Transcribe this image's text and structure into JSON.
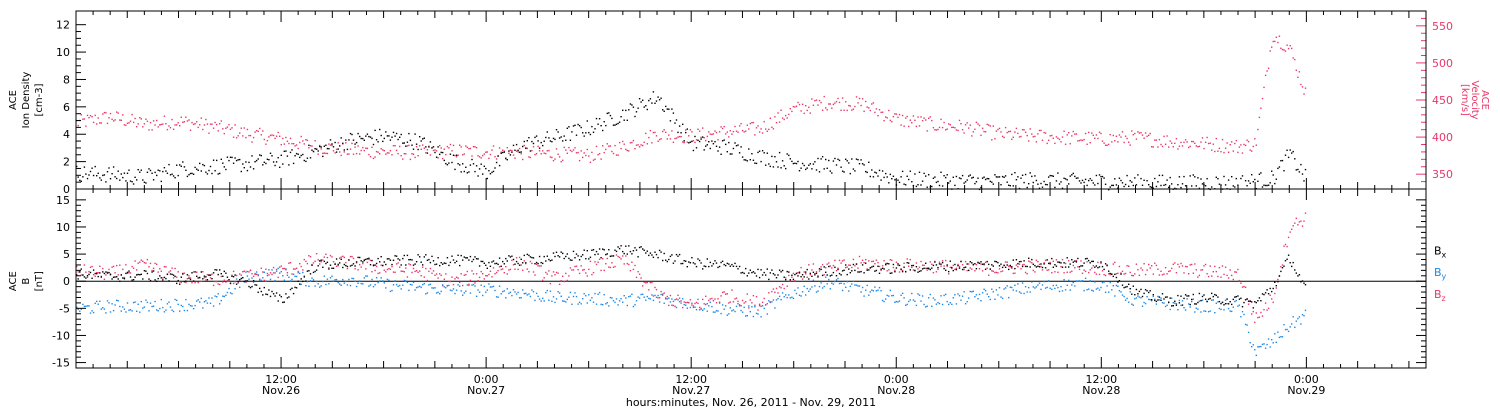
{
  "chart_data": [
    {
      "type": "scatter",
      "instrument": "ACE",
      "ylabel_left": [
        "ACE",
        "Ion Density",
        "[cm-3]"
      ],
      "ylabel_right": [
        "ACE",
        "Velocity",
        "[km/s]"
      ],
      "ylim_left": [
        0,
        13
      ],
      "ylim_right": [
        330,
        570
      ],
      "yticks_left": [
        "0",
        "2",
        "4",
        "6",
        "8",
        "10",
        "12"
      ],
      "yticks_right": [
        "350",
        "400",
        "450",
        "500",
        "550"
      ],
      "grid": false,
      "series": [
        {
          "name": "Ion Density",
          "axis": "left",
          "color": "#000000",
          "x_hours": [
            0,
            2,
            4,
            6,
            8,
            10,
            12,
            14,
            16,
            18,
            20,
            22,
            24,
            26,
            28,
            30,
            32,
            34,
            36,
            38,
            40,
            42,
            44,
            46,
            48,
            50,
            52,
            54,
            56,
            58,
            60,
            62,
            64,
            66,
            68,
            70,
            71,
            72
          ],
          "y": [
            1.2,
            1.1,
            0.9,
            1.5,
            1.7,
            1.9,
            2.2,
            2.8,
            3.6,
            3.9,
            3.5,
            2.1,
            1.3,
            3.2,
            3.8,
            4.5,
            5.5,
            6.8,
            3.4,
            3.1,
            2.4,
            2.0,
            1.8,
            1.6,
            0.8,
            0.7,
            0.6,
            0.6,
            0.7,
            0.6,
            0.6,
            0.5,
            0.5,
            0.5,
            0.5,
            0.8,
            2.6,
            0.7
          ]
        },
        {
          "name": "Velocity",
          "axis": "right",
          "color": "#e8386a",
          "x_hours": [
            0,
            2,
            4,
            6,
            8,
            10,
            12,
            14,
            16,
            18,
            20,
            22,
            24,
            26,
            28,
            30,
            32,
            34,
            36,
            38,
            40,
            42,
            44,
            46,
            48,
            50,
            52,
            54,
            56,
            58,
            60,
            62,
            64,
            66,
            68,
            69,
            70,
            71,
            72
          ],
          "y": [
            420,
            428,
            418,
            422,
            415,
            405,
            398,
            388,
            383,
            381,
            380,
            382,
            381,
            380,
            378,
            376,
            388,
            405,
            402,
            408,
            412,
            438,
            448,
            445,
            425,
            418,
            414,
            405,
            402,
            400,
            398,
            400,
            395,
            392,
            388,
            392,
            540,
            520,
            455
          ]
        }
      ]
    },
    {
      "type": "scatter",
      "instrument": "ACE",
      "ylabel_left": [
        "ACE",
        "B",
        "[nT]"
      ],
      "ylim": [
        -16,
        17
      ],
      "yticks": [
        "-15",
        "-10",
        "-5",
        "0",
        "5",
        "10",
        "15"
      ],
      "grid": false,
      "zero_line": true,
      "legend": [
        "Bx",
        "By",
        "Bz"
      ],
      "legend_placement": "right",
      "series": [
        {
          "name": "Bx",
          "color": "#000000",
          "x_hours": [
            0,
            2,
            4,
            6,
            8,
            10,
            12,
            14,
            16,
            18,
            20,
            22,
            24,
            26,
            28,
            30,
            32,
            34,
            36,
            38,
            40,
            42,
            44,
            46,
            48,
            50,
            52,
            54,
            56,
            58,
            60,
            62,
            64,
            66,
            68,
            69,
            70,
            71,
            72
          ],
          "y": [
            1.5,
            1.0,
            1.2,
            0.5,
            1.5,
            0.0,
            -3.5,
            3.0,
            3.5,
            3.8,
            4.0,
            4.0,
            3.5,
            4.0,
            4.5,
            5.0,
            6.0,
            5.0,
            3.5,
            3.0,
            1.5,
            1.0,
            2.0,
            2.5,
            2.5,
            2.8,
            3.0,
            3.2,
            3.5,
            3.5,
            3.5,
            -2.0,
            -3.5,
            -3.0,
            -3.5,
            -4.0,
            -1.0,
            4.5,
            -2.0
          ]
        },
        {
          "name": "By",
          "color": "#1e88e5",
          "x_hours": [
            0,
            2,
            4,
            6,
            8,
            10,
            12,
            14,
            16,
            18,
            20,
            22,
            24,
            26,
            28,
            30,
            32,
            34,
            36,
            38,
            40,
            42,
            44,
            46,
            48,
            50,
            52,
            54,
            56,
            58,
            60,
            62,
            64,
            66,
            68,
            69,
            70,
            71,
            72
          ],
          "y": [
            -5.0,
            -4.5,
            -4.5,
            -4.2,
            -4.0,
            1.0,
            1.5,
            0.0,
            0.5,
            -0.5,
            -1.0,
            -1.5,
            -1.5,
            -2.0,
            -3.0,
            -3.0,
            -3.5,
            -3.0,
            -4.0,
            -5.0,
            -5.5,
            -2.0,
            0.0,
            -1.5,
            -3.0,
            -3.5,
            -3.0,
            -2.0,
            -1.0,
            -0.5,
            -0.5,
            -3.5,
            -4.0,
            -4.5,
            -4.5,
            -13.0,
            -11.0,
            -8.0,
            -6.0
          ]
        },
        {
          "name": "Bz",
          "color": "#e8386a",
          "x_hours": [
            0,
            2,
            4,
            6,
            8,
            10,
            12,
            14,
            16,
            18,
            20,
            22,
            24,
            26,
            28,
            30,
            32,
            34,
            36,
            38,
            40,
            42,
            44,
            46,
            48,
            50,
            52,
            54,
            56,
            58,
            60,
            62,
            64,
            66,
            68,
            69,
            70,
            71,
            72
          ],
          "y": [
            2.0,
            1.5,
            3.0,
            1.0,
            0.5,
            1.0,
            2.0,
            4.0,
            3.5,
            2.5,
            2.0,
            0.0,
            1.5,
            3.5,
            0.5,
            2.5,
            4.0,
            -2.5,
            -4.5,
            -2.5,
            -4.0,
            1.5,
            2.5,
            3.5,
            3.0,
            3.0,
            2.5,
            2.5,
            2.8,
            3.0,
            2.5,
            2.0,
            2.5,
            2.0,
            1.5,
            -7.0,
            -3.0,
            10.0,
            12.0
          ]
        }
      ]
    }
  ],
  "x_axis": {
    "tick_labels": [
      {
        "hours": 12,
        "time": "12:00",
        "date": "Nov.26"
      },
      {
        "hours": 24,
        "time": "0:00",
        "date": "Nov.27"
      },
      {
        "hours": 36,
        "time": "12:00",
        "date": "Nov.27"
      },
      {
        "hours": 48,
        "time": "0:00",
        "date": "Nov.28"
      },
      {
        "hours": 60,
        "time": "12:00",
        "date": "Nov.28"
      },
      {
        "hours": 72,
        "time": "0:00",
        "date": "Nov.29"
      }
    ],
    "range_hours": [
      0,
      79
    ],
    "title": "hours:minutes, Nov. 26, 2011 - Nov. 29, 2011"
  }
}
